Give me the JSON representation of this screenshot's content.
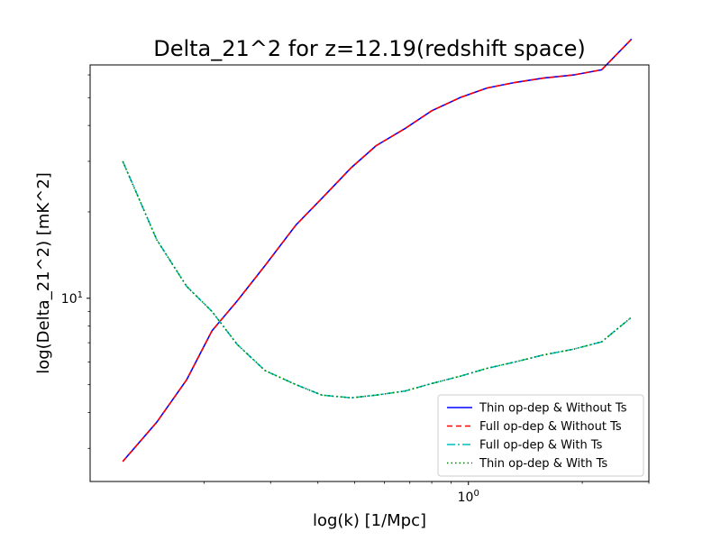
{
  "chart_data": {
    "type": "line",
    "title": "Delta_21^2 for z=12.19(redshift space)",
    "xlabel": "log(k) [1/Mpc]",
    "ylabel": "log(Delta_21^2) [mK^2]",
    "xscale": "log",
    "yscale": "log",
    "xlim": [
      0.1,
      3.0
    ],
    "ylim": [
      2.3,
      65
    ],
    "x_ticks": [
      {
        "value": 1,
        "base": "10",
        "exp": "0"
      }
    ],
    "y_ticks": [
      {
        "value": 10,
        "base": "10",
        "exp": "1"
      }
    ],
    "x": [
      0.122,
      0.15,
      0.18,
      0.21,
      0.245,
      0.29,
      0.35,
      0.41,
      0.49,
      0.57,
      0.68,
      0.8,
      0.95,
      1.12,
      1.33,
      1.58,
      1.9,
      2.25,
      2.7
    ],
    "series": [
      {
        "name": "Thin op-dep & Without Ts",
        "color": "#0000ff",
        "dash": "solid",
        "values": [
          2.7,
          3.7,
          5.2,
          7.7,
          9.8,
          13.0,
          18.0,
          22.3,
          28.5,
          34.0,
          39.0,
          45.0,
          50.0,
          54.0,
          56.5,
          58.5,
          60.0,
          62.5,
          80.0
        ]
      },
      {
        "name": "Full op-dep & Without Ts",
        "color": "#ff0000",
        "dash": "dashed",
        "values": [
          2.7,
          3.7,
          5.2,
          7.7,
          9.8,
          13.0,
          18.0,
          22.3,
          28.5,
          34.0,
          39.0,
          45.0,
          50.0,
          54.0,
          56.5,
          58.5,
          60.0,
          62.5,
          80.0
        ]
      },
      {
        "name": "Full op-dep & With Ts",
        "color": "#00bfbf",
        "dash": "dashdot",
        "values": [
          30.0,
          16.0,
          11.0,
          9.0,
          6.9,
          5.6,
          5.0,
          4.6,
          4.5,
          4.6,
          4.75,
          5.05,
          5.35,
          5.7,
          6.0,
          6.35,
          6.65,
          7.05,
          8.6
        ]
      },
      {
        "name": "Thin op-dep & With Ts",
        "color": "#008000",
        "dash": "dotted",
        "values": [
          30.0,
          16.0,
          11.0,
          9.0,
          6.9,
          5.6,
          5.0,
          4.6,
          4.5,
          4.6,
          4.75,
          5.05,
          5.35,
          5.7,
          6.0,
          6.35,
          6.65,
          7.05,
          8.6
        ]
      }
    ],
    "legend": "lower right",
    "grid": false
  }
}
